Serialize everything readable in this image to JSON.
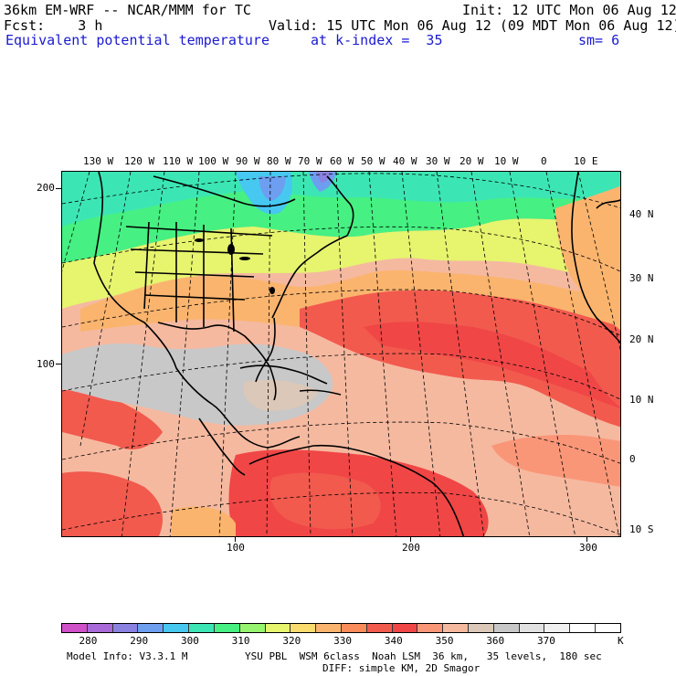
{
  "header": {
    "model_title": "36km EM-WRF -- NCAR/MMM for TC",
    "init": "Init: 12 UTC Mon 06 Aug 12",
    "forecast": "Fcst:    3 h",
    "valid": "Valid: 15 UTC Mon 06 Aug 12 (09 MDT Mon 06 Aug 12)",
    "field": "Equivalent potential temperature",
    "level": "at k-index =  35",
    "smoothing": "sm= 6"
  },
  "top_lon_labels": [
    "130 W",
    "120 W",
    "110 W",
    "100 W",
    "90 W",
    "80 W",
    "70 W",
    "60 W",
    "50 W",
    "40 W",
    "30 W",
    "20 W",
    "10 W",
    "0",
    "10 E"
  ],
  "right_lat_labels": [
    "40 N",
    "30 N",
    "20 N",
    "10 N",
    "0",
    "10 S"
  ],
  "left_grid_labels": [
    "200",
    "100"
  ],
  "bottom_grid_labels": [
    "100",
    "200",
    "300"
  ],
  "legend": {
    "colors": [
      "#d050c8",
      "#a86ad8",
      "#8a82e0",
      "#6e9ef0",
      "#46c8f0",
      "#3ce6b4",
      "#46f082",
      "#96f46e",
      "#e6f46e",
      "#fadc6e",
      "#fab46e",
      "#fa8c5a",
      "#f25a4e",
      "#f04646",
      "#fa9678",
      "#f5b9a0",
      "#dcc8b8",
      "#c8c8c8",
      "#e1e1e1",
      "#f0f0f0",
      "#ffffff",
      "#ffffff"
    ],
    "labels": [
      "280",
      "290",
      "300",
      "310",
      "320",
      "330",
      "340",
      "350",
      "360",
      "370"
    ],
    "unit": "K"
  },
  "footer": {
    "model_info": "Model Info: V3.3.1 M",
    "physics_line1": "YSU PBL  WSM 6class  Noah LSM  36 km,   35 levels,  180 sec",
    "physics_line2": "DIFF: simple KM, 2D Smagor"
  }
}
